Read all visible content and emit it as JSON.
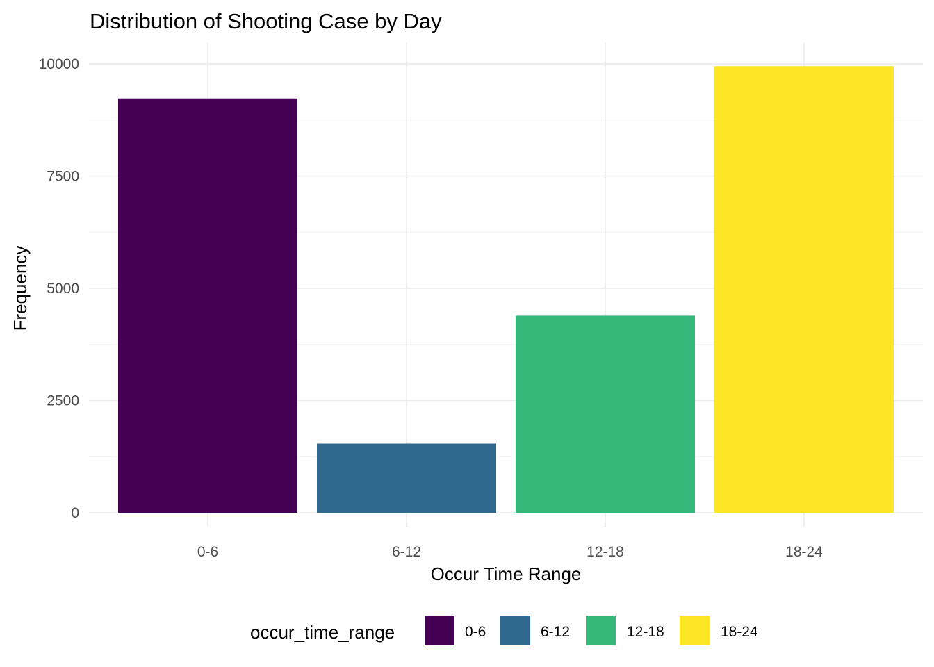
{
  "chart_data": {
    "type": "bar",
    "title": "Distribution of Shooting Case by Day",
    "xlabel": "Occur Time Range",
    "ylabel": "Frequency",
    "categories": [
      "0-6",
      "6-12",
      "12-18",
      "18-24"
    ],
    "values": [
      9230,
      1540,
      4390,
      9950
    ],
    "colors": [
      "#440154",
      "#31688E",
      "#35B779",
      "#FDE725"
    ],
    "ylim": [
      0,
      10000
    ],
    "yticks": [
      0,
      2500,
      5000,
      7500,
      10000
    ],
    "ytick_labels": [
      "0",
      "2500",
      "5000",
      "7500",
      "10000"
    ],
    "grid": true,
    "legend": {
      "title": "occur_time_range",
      "position": "bottom",
      "entries": [
        "0-6",
        "6-12",
        "12-18",
        "18-24"
      ]
    }
  }
}
